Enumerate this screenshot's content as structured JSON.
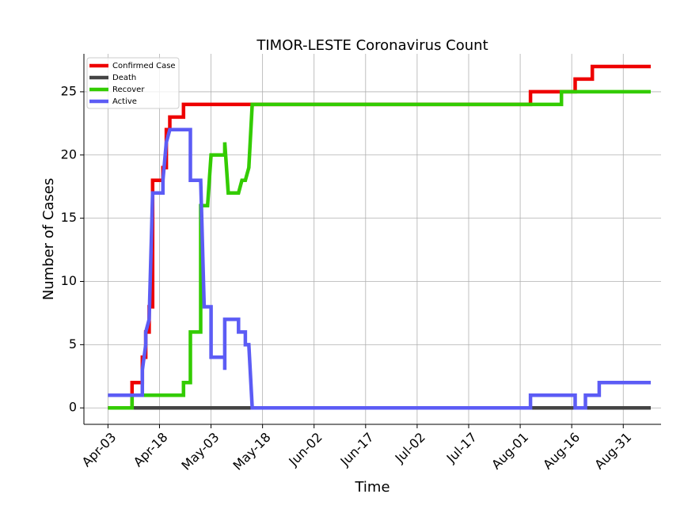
{
  "chart_data": {
    "type": "line",
    "title": "TIMOR-LESTE Coronavirus Count",
    "xlabel": "Time",
    "ylabel": "Number of Cases",
    "x_tick_labels": [
      "Apr-03",
      "Apr-18",
      "May-03",
      "May-18",
      "Jun-02",
      "Jun-17",
      "Jul-02",
      "Jul-17",
      "Aug-01",
      "Aug-16",
      "Aug-31"
    ],
    "y_ticks": [
      0,
      5,
      10,
      15,
      20,
      25
    ],
    "xlim": [
      "2020-03-27",
      "2020-09-11"
    ],
    "ylim": [
      -1.3,
      28
    ],
    "grid": true,
    "legend_position": "top-left",
    "line_style": "step",
    "series": [
      {
        "name": "Confirmed Case",
        "color": "#ee0000",
        "points": [
          [
            "2020-04-03",
            0
          ],
          [
            "2020-04-10",
            0
          ],
          [
            "2020-04-10",
            2
          ],
          [
            "2020-04-13",
            2
          ],
          [
            "2020-04-13",
            4
          ],
          [
            "2020-04-14",
            4
          ],
          [
            "2020-04-14",
            6
          ],
          [
            "2020-04-15",
            6
          ],
          [
            "2020-04-15",
            8
          ],
          [
            "2020-04-16",
            8
          ],
          [
            "2020-04-16",
            18
          ],
          [
            "2020-04-19",
            18
          ],
          [
            "2020-04-19",
            19
          ],
          [
            "2020-04-20",
            19
          ],
          [
            "2020-04-20",
            22
          ],
          [
            "2020-04-21",
            22
          ],
          [
            "2020-04-21",
            23
          ],
          [
            "2020-04-25",
            23
          ],
          [
            "2020-04-25",
            24
          ],
          [
            "2020-08-04",
            24
          ],
          [
            "2020-08-04",
            25
          ],
          [
            "2020-08-17",
            25
          ],
          [
            "2020-08-17",
            26
          ],
          [
            "2020-08-22",
            26
          ],
          [
            "2020-08-22",
            27
          ],
          [
            "2020-09-08",
            27
          ]
        ]
      },
      {
        "name": "Death",
        "color": "#444444",
        "points": [
          [
            "2020-04-03",
            0
          ],
          [
            "2020-09-08",
            0
          ]
        ]
      },
      {
        "name": "Recover",
        "color": "#33cc00",
        "points": [
          [
            "2020-04-03",
            0
          ],
          [
            "2020-04-10",
            0
          ],
          [
            "2020-04-10",
            1
          ],
          [
            "2020-04-25",
            1
          ],
          [
            "2020-04-25",
            2
          ],
          [
            "2020-04-27",
            2
          ],
          [
            "2020-04-27",
            6
          ],
          [
            "2020-04-30",
            6
          ],
          [
            "2020-04-30",
            16
          ],
          [
            "2020-05-02",
            16
          ],
          [
            "2020-05-03",
            20
          ],
          [
            "2020-05-07",
            20
          ],
          [
            "2020-05-07",
            21
          ],
          [
            "2020-05-08",
            17
          ],
          [
            "2020-05-11",
            17
          ],
          [
            "2020-05-12",
            18
          ],
          [
            "2020-05-13",
            18
          ],
          [
            "2020-05-14",
            19
          ],
          [
            "2020-05-15",
            24
          ],
          [
            "2020-08-13",
            24
          ],
          [
            "2020-08-13",
            25
          ],
          [
            "2020-09-08",
            25
          ]
        ]
      },
      {
        "name": "Active",
        "color": "#5c5cf5",
        "points": [
          [
            "2020-04-03",
            1
          ],
          [
            "2020-04-13",
            1
          ],
          [
            "2020-04-13",
            3
          ],
          [
            "2020-04-14",
            5
          ],
          [
            "2020-04-14",
            6
          ],
          [
            "2020-04-15",
            7
          ],
          [
            "2020-04-16",
            17
          ],
          [
            "2020-04-19",
            17
          ],
          [
            "2020-04-19",
            18
          ],
          [
            "2020-04-20",
            21
          ],
          [
            "2020-04-21",
            22
          ],
          [
            "2020-04-27",
            22
          ],
          [
            "2020-04-27",
            18
          ],
          [
            "2020-04-30",
            18
          ],
          [
            "2020-05-01",
            8
          ],
          [
            "2020-05-03",
            8
          ],
          [
            "2020-05-03",
            4
          ],
          [
            "2020-05-07",
            4
          ],
          [
            "2020-05-07",
            3
          ],
          [
            "2020-05-07",
            7
          ],
          [
            "2020-05-11",
            7
          ],
          [
            "2020-05-11",
            6
          ],
          [
            "2020-05-13",
            6
          ],
          [
            "2020-05-13",
            5
          ],
          [
            "2020-05-14",
            5
          ],
          [
            "2020-05-15",
            0
          ],
          [
            "2020-08-04",
            0
          ],
          [
            "2020-08-04",
            1
          ],
          [
            "2020-08-17",
            1
          ],
          [
            "2020-08-17",
            0
          ],
          [
            "2020-08-20",
            0
          ],
          [
            "2020-08-20",
            1
          ],
          [
            "2020-08-24",
            1
          ],
          [
            "2020-08-24",
            2
          ],
          [
            "2020-09-08",
            2
          ]
        ]
      }
    ]
  }
}
